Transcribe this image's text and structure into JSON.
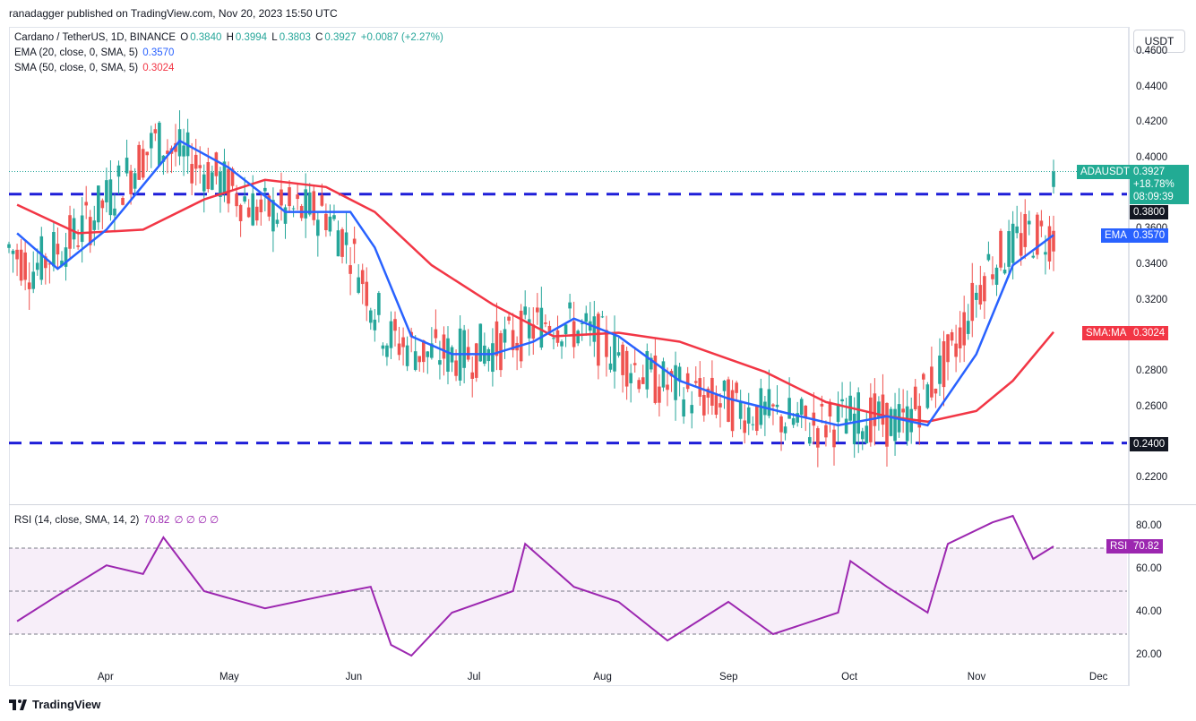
{
  "header": {
    "published": "ranadagger published on TradingView.com, Nov 20, 2023 15:50 UTC"
  },
  "legend": {
    "symbol": "Cardano / TetherUS, 1D, BINANCE",
    "o_label": "O",
    "o": "0.3840",
    "h_label": "H",
    "h": "0.3994",
    "l_label": "L",
    "l": "0.3803",
    "c_label": "C",
    "c": "0.3927",
    "change": "+0.0087 (+2.27%)",
    "ema_label": "EMA (20, close, 0, SMA, 5)",
    "ema_value": "0.3570",
    "sma_label": "SMA (50, close, 0, SMA, 5)",
    "sma_value": "0.3024",
    "rsi_label": "RSI (14, close, SMA, 14, 2)",
    "rsi_value": "70.82",
    "rsi_extra": "∅ ∅ ∅ ∅"
  },
  "price_axis": {
    "unit": "USDT",
    "ticks": [
      "0.4600",
      "0.4400",
      "0.4200",
      "0.4000",
      "0.3600",
      "0.3400",
      "0.3200",
      "0.2800",
      "0.2600",
      "0.2200"
    ]
  },
  "rsi_axis": {
    "ticks": [
      "80.00",
      "60.00",
      "40.00",
      "20.00"
    ]
  },
  "time_axis": {
    "months": [
      "Apr",
      "May",
      "Jun",
      "Jul",
      "Aug",
      "Sep",
      "Oct",
      "Nov",
      "Dec"
    ]
  },
  "tags": {
    "price_name": "ADAUSDT",
    "price_value": "0.3927",
    "price_change": "+18.78%",
    "countdown": "08:09:39",
    "resistance": "0.3800",
    "support": "0.2400",
    "ema_name": "EMA",
    "ema_value": "0.3570",
    "sma_name": "SMA:MA",
    "sma_value": "0.3024",
    "rsi_name": "RSI",
    "rsi_value": "70.82"
  },
  "colors": {
    "up": "#26a69a",
    "down": "#ef5350",
    "ema": "#2962ff",
    "sma": "#f23645",
    "rsi": "#9c27b0",
    "level": "#1e1ed8"
  },
  "footer": {
    "brand": "TradingView"
  },
  "chart_data": [
    {
      "type": "candlestick",
      "title": "Cardano / TetherUS, 1D, BINANCE",
      "ylim": [
        0.19,
        0.465
      ],
      "horizontal_levels": [
        0.38,
        0.24
      ],
      "series": [
        {
          "name": "EMA (20)",
          "x": [
            "2023-03-10",
            "2023-03-20",
            "2023-04-01",
            "2023-04-10",
            "2023-04-19",
            "2023-05-01",
            "2023-05-15",
            "2023-05-31",
            "2023-06-06",
            "2023-06-15",
            "2023-06-25",
            "2023-07-05",
            "2023-07-15",
            "2023-07-25",
            "2023-08-05",
            "2023-08-20",
            "2023-09-01",
            "2023-09-15",
            "2023-09-28",
            "2023-10-10",
            "2023-10-20",
            "2023-11-01",
            "2023-11-10",
            "2023-11-20"
          ],
          "values": [
            0.358,
            0.338,
            0.36,
            0.385,
            0.41,
            0.395,
            0.37,
            0.37,
            0.35,
            0.3,
            0.29,
            0.29,
            0.297,
            0.31,
            0.3,
            0.275,
            0.265,
            0.257,
            0.25,
            0.255,
            0.25,
            0.29,
            0.34,
            0.357
          ]
        },
        {
          "name": "SMA (50)",
          "x": [
            "2023-03-10",
            "2023-03-25",
            "2023-04-10",
            "2023-04-25",
            "2023-05-10",
            "2023-05-25",
            "2023-06-06",
            "2023-06-20",
            "2023-07-05",
            "2023-07-20",
            "2023-08-05",
            "2023-08-20",
            "2023-09-10",
            "2023-09-25",
            "2023-10-10",
            "2023-10-20",
            "2023-11-01",
            "2023-11-10",
            "2023-11-20"
          ],
          "values": [
            0.374,
            0.358,
            0.36,
            0.377,
            0.388,
            0.384,
            0.37,
            0.34,
            0.318,
            0.3,
            0.302,
            0.297,
            0.28,
            0.263,
            0.255,
            0.252,
            0.258,
            0.275,
            0.3024
          ]
        }
      ],
      "last_close": 0.3927,
      "last_open": 0.384,
      "last_high": 0.3994,
      "last_low": 0.3803,
      "notable_extremes": {
        "high": 0.452,
        "low": 0.22
      }
    },
    {
      "type": "line",
      "title": "RSI (14, close, SMA, 14, 2)",
      "ylim": [
        15,
        90
      ],
      "levels": [
        70,
        50,
        30
      ],
      "series": [
        {
          "name": "RSI",
          "x": [
            "2023-03-10",
            "2023-03-20",
            "2023-04-01",
            "2023-04-10",
            "2023-04-15",
            "2023-04-25",
            "2023-05-10",
            "2023-05-25",
            "2023-06-05",
            "2023-06-10",
            "2023-06-15",
            "2023-06-25",
            "2023-07-10",
            "2023-07-13",
            "2023-07-25",
            "2023-08-05",
            "2023-08-17",
            "2023-09-01",
            "2023-09-12",
            "2023-09-28",
            "2023-10-01",
            "2023-10-10",
            "2023-10-20",
            "2023-10-25",
            "2023-11-05",
            "2023-11-10",
            "2023-11-15",
            "2023-11-20"
          ],
          "values": [
            36,
            48,
            62,
            58,
            75,
            50,
            42,
            48,
            52,
            25,
            20,
            40,
            50,
            72,
            52,
            45,
            27,
            45,
            30,
            40,
            64,
            52,
            40,
            72,
            82,
            85,
            65,
            70.82
          ]
        }
      ]
    }
  ]
}
